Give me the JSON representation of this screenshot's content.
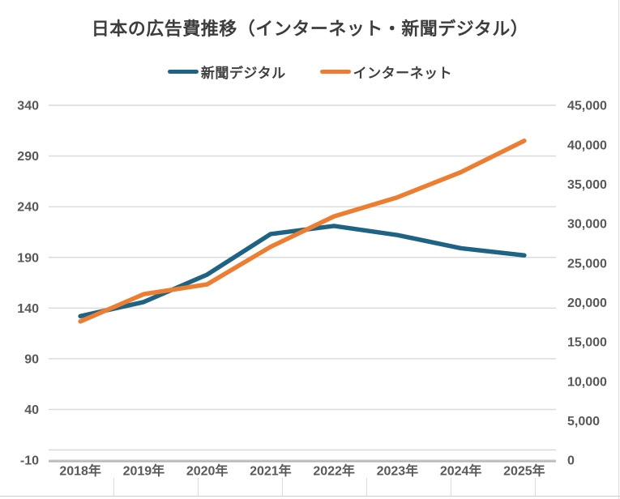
{
  "title": "日本の広告費推移（インターネット・新聞デジタル）",
  "legend": [
    {
      "label": "新聞デジタル",
      "color": "#1E6384"
    },
    {
      "label": "インターネット",
      "color": "#ED7D31"
    }
  ],
  "colors": {
    "series_newspaper_digital": "#1E6384",
    "series_internet": "#ED7D31",
    "gridline": "#d9d9d9",
    "axis_line": "#b7b7b7",
    "tick_text": "#595959",
    "title_text": "#3d3d3d"
  },
  "chart_data": {
    "type": "line",
    "title": "日本の広告費推移（インターネット・新聞デジタル）",
    "categories": [
      "2018年",
      "2019年",
      "2020年",
      "2021年",
      "2022年",
      "2023年",
      "2024年",
      "2025年"
    ],
    "series": [
      {
        "id": "shinbun-digital",
        "name": "新聞デジタル",
        "axis": "left",
        "color": "#1E6384",
        "values": [
          132,
          146,
          173,
          213,
          221,
          212,
          199,
          192
        ]
      },
      {
        "id": "internet",
        "name": "インターネット",
        "axis": "right",
        "color": "#ED7D31",
        "values": [
          17589,
          21048,
          22290,
          27052,
          30912,
          33330,
          36517,
          40500
        ]
      }
    ],
    "axes": {
      "left": {
        "min": -10,
        "max": 340,
        "tick_step": 50,
        "ticks": [
          "340",
          "290",
          "240",
          "190",
          "140",
          "90",
          "40",
          "-10"
        ]
      },
      "right": {
        "min": 0,
        "max": 45000,
        "tick_step": 5000,
        "ticks": [
          "45,000",
          "40,000",
          "35,000",
          "30,000",
          "25,000",
          "20,000",
          "15,000",
          "10,000",
          "5,000",
          "0"
        ]
      }
    },
    "grid": true,
    "legend_position": "top",
    "xlabel": "",
    "ylabel_left": "",
    "ylabel_right": ""
  }
}
